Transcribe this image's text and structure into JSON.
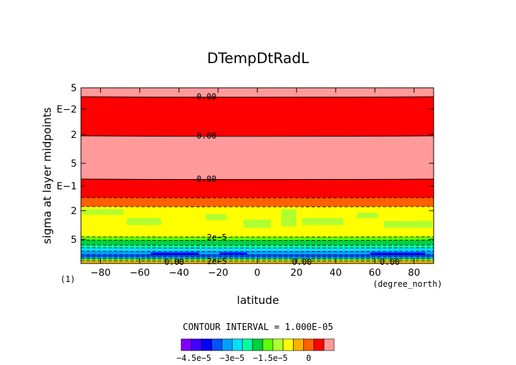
{
  "chart_data": {
    "type": "contour",
    "title": "DTempDtRadL",
    "xlabel": "latitude",
    "ylabel": "sigma at layer midpoints",
    "x_unit": "(degree_north)",
    "corner_label": "(1)",
    "x_ticks": [
      -80,
      -60,
      -40,
      -20,
      0,
      20,
      40,
      60,
      80
    ],
    "x_tick_labels": [
      "−80",
      "−60",
      "−40",
      "−20",
      "0",
      "20",
      "40",
      "60",
      "80"
    ],
    "xlim": [
      -90,
      90
    ],
    "y_scale": "log",
    "y_tick_labels": [
      "5",
      "E−2",
      "2",
      "5",
      "E−1",
      "2",
      "5"
    ],
    "contour_interval_text": "CONTOUR INTERVAL = 1.000E-05",
    "contour_labels": [
      "0.00",
      "0.00",
      "0.00",
      "2e−5",
      "2e−5",
      "0.00",
      "0.00",
      "0.00"
    ],
    "colorbar": {
      "min": -5e-05,
      "max": 1e-05,
      "step": 5e-06,
      "colors": [
        "#7f00ff",
        "#3f00ff",
        "#0000ff",
        "#0050ff",
        "#00a0ff",
        "#00e0ff",
        "#00ffa0",
        "#00d040",
        "#60ff00",
        "#b0ff30",
        "#ffff00",
        "#ffb000",
        "#ff6000",
        "#ff0000",
        "#ff9a9a"
      ],
      "tick_labels": [
        "−4.5e−5",
        "−3e−5",
        "−1.5e−5",
        "0"
      ]
    }
  }
}
